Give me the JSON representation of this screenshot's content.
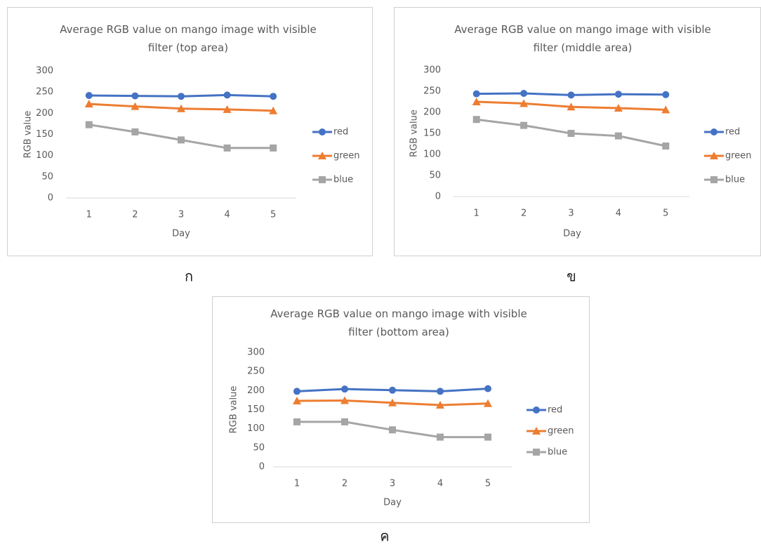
{
  "chart_data": [
    {
      "type": "line",
      "title": "Average RGB value on mango image with visible filter (top area)",
      "caption": "ก",
      "x_label": "Day",
      "y_label": "RGB value",
      "categories": [
        "1",
        "2",
        "3",
        "4",
        "5"
      ],
      "series": [
        {
          "name": "red",
          "color": "#4472c4",
          "marker": "circle",
          "values": [
            242,
            241,
            240,
            243,
            240
          ]
        },
        {
          "name": "green",
          "color": "#ed7d31",
          "marker": "triangle",
          "values": [
            222,
            216,
            211,
            209,
            206
          ]
        },
        {
          "name": "blue",
          "color": "#a5a5a5",
          "marker": "square",
          "values": [
            173,
            156,
            137,
            118,
            118
          ]
        }
      ],
      "ylim": [
        0,
        300
      ],
      "yticks": [
        0,
        50,
        100,
        150,
        200,
        250,
        300
      ],
      "grid": false,
      "legend": "right"
    },
    {
      "type": "line",
      "title": "Average RGB value on mango image with visible filter (middle area)",
      "caption": "ข",
      "x_label": "Day",
      "y_label": "RGB value",
      "categories": [
        "1",
        "2",
        "3",
        "4",
        "5"
      ],
      "series": [
        {
          "name": "red",
          "color": "#4472c4",
          "marker": "circle",
          "values": [
            244,
            245,
            241,
            243,
            242
          ]
        },
        {
          "name": "green",
          "color": "#ed7d31",
          "marker": "triangle",
          "values": [
            225,
            221,
            213,
            210,
            206
          ]
        },
        {
          "name": "blue",
          "color": "#a5a5a5",
          "marker": "square",
          "values": [
            183,
            169,
            150,
            144,
            120
          ]
        }
      ],
      "ylim": [
        0,
        300
      ],
      "yticks": [
        0,
        50,
        100,
        150,
        200,
        250,
        300
      ],
      "grid": false,
      "legend": "right"
    },
    {
      "type": "line",
      "title": "Average RGB value on mango image with visible filter (bottom area)",
      "caption": "ค",
      "x_label": "Day",
      "y_label": "RGB value",
      "categories": [
        "1",
        "2",
        "3",
        "4",
        "5"
      ],
      "series": [
        {
          "name": "red",
          "color": "#4472c4",
          "marker": "circle",
          "values": [
            198,
            204,
            201,
            198,
            205
          ]
        },
        {
          "name": "green",
          "color": "#ed7d31",
          "marker": "triangle",
          "values": [
            173,
            174,
            168,
            162,
            166
          ]
        },
        {
          "name": "blue",
          "color": "#a5a5a5",
          "marker": "square",
          "values": [
            118,
            118,
            97,
            78,
            78
          ]
        }
      ],
      "ylim": [
        0,
        300
      ],
      "yticks": [
        0,
        50,
        100,
        150,
        200,
        250,
        300
      ],
      "grid": false,
      "legend": "right"
    }
  ]
}
